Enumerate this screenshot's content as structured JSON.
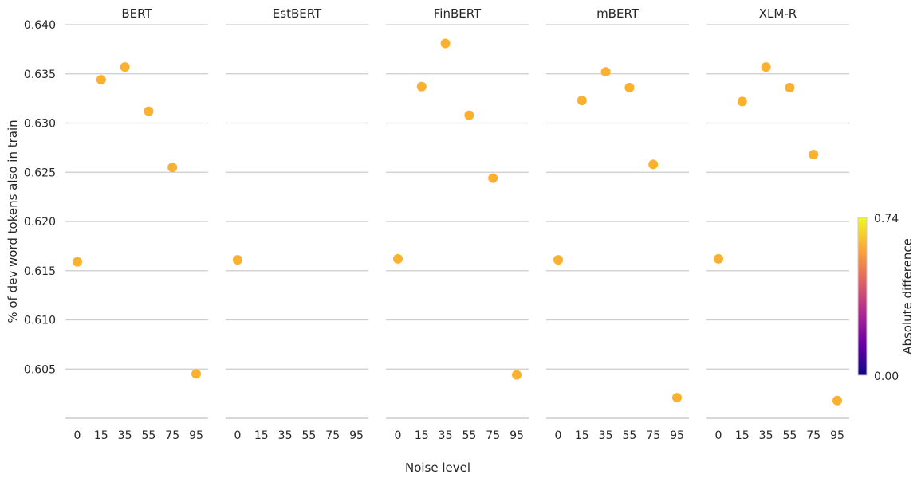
{
  "chart_data": {
    "type": "scatter",
    "facets": [
      "BERT",
      "EstBERT",
      "FinBERT",
      "mBERT",
      "XLM-R"
    ],
    "x_categories": [
      "0",
      "15",
      "35",
      "55",
      "75",
      "95"
    ],
    "xlabel": "Noise level",
    "ylabel": "% of dev word tokens also in train",
    "ylim": [
      0.6,
      0.64
    ],
    "y_ticks": [
      "0.640",
      "0.635",
      "0.630",
      "0.625",
      "0.620",
      "0.615",
      "0.610",
      "0.605"
    ],
    "y_tick_values": [
      0.64,
      0.635,
      0.63,
      0.625,
      0.62,
      0.615,
      0.61,
      0.605
    ],
    "grid": true,
    "point_color": "#fbb12f",
    "series": [
      {
        "name": "BERT",
        "x": [
          "0",
          "15",
          "35",
          "55",
          "75",
          "95"
        ],
        "values": [
          0.6159,
          0.6344,
          0.6357,
          0.6312,
          0.6255,
          0.6045
        ]
      },
      {
        "name": "EstBERT",
        "x": [
          "0"
        ],
        "values": [
          0.6161
        ]
      },
      {
        "name": "FinBERT",
        "x": [
          "0",
          "15",
          "35",
          "55",
          "75",
          "95"
        ],
        "values": [
          0.6162,
          0.6337,
          0.6381,
          0.6308,
          0.6244,
          0.6044
        ]
      },
      {
        "name": "mBERT",
        "x": [
          "0",
          "15",
          "35",
          "55",
          "75",
          "95"
        ],
        "values": [
          0.6161,
          0.6323,
          0.6352,
          0.6336,
          0.6258,
          0.6021
        ]
      },
      {
        "name": "XLM-R",
        "x": [
          "0",
          "15",
          "35",
          "55",
          "75",
          "95"
        ],
        "values": [
          0.6162,
          0.6322,
          0.6357,
          0.6336,
          0.6268,
          0.6018
        ]
      }
    ],
    "colorbar": {
      "label": "Absolute  difference",
      "min_label": "0.74",
      "max_label": "0.00",
      "colormap": "plasma",
      "stops": [
        "#f0f921",
        "#fca636",
        "#e16462",
        "#b12a90",
        "#6a00a8",
        "#0d0887"
      ]
    }
  }
}
